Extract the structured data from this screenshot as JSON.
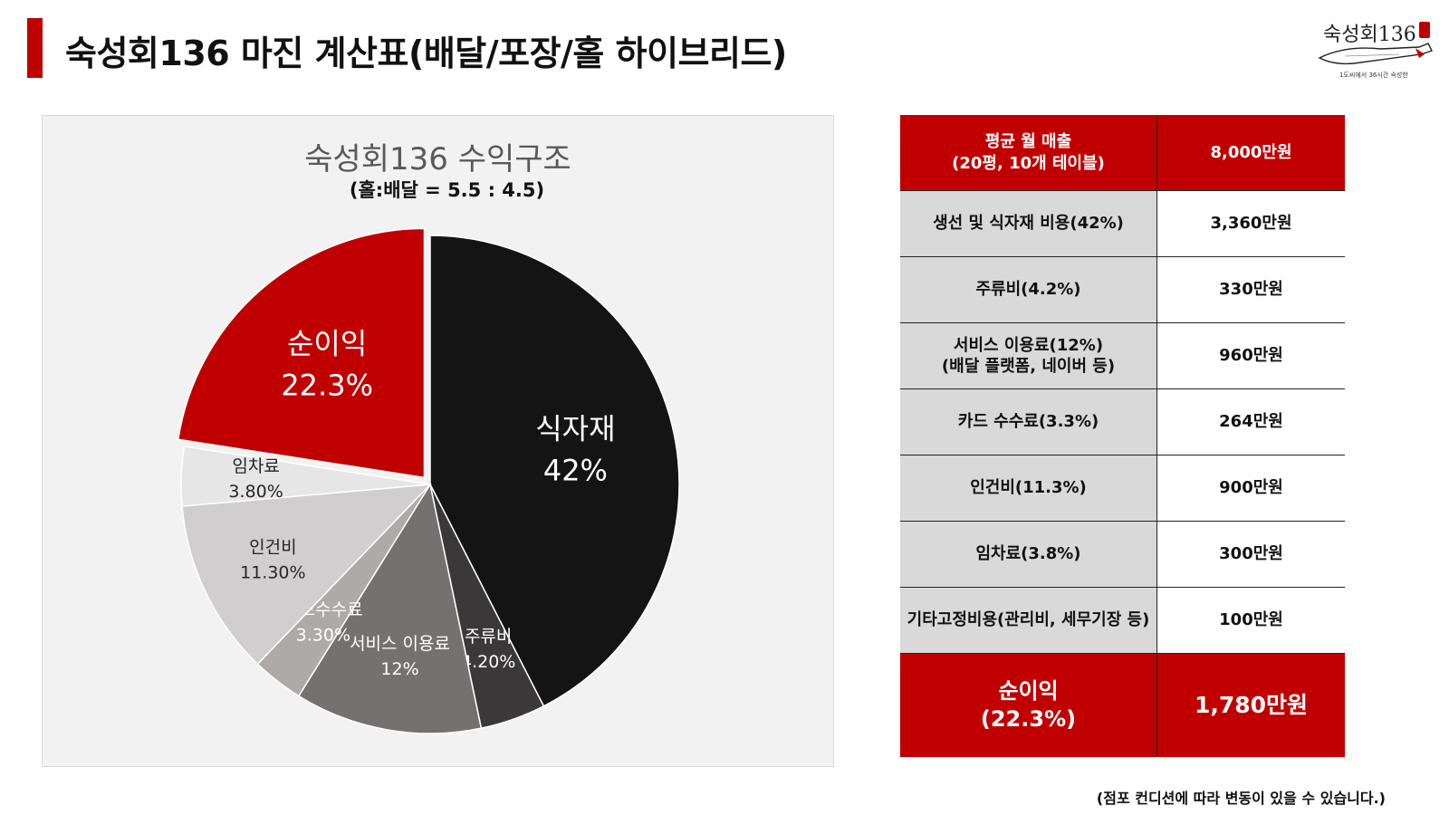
{
  "header": {
    "title": "숙성회136 마진 계산표(배달/포장/홀 하이브리드)",
    "accent_color": "#c00000"
  },
  "logo": {
    "name": "숙성회136",
    "tagline": "1도씨에서 36시간 숙성한"
  },
  "chart_data": {
    "type": "pie",
    "title": "숙성회136 수익구조",
    "subtitle": "(홀:배달 = 5.5 : 4.5)",
    "slices": [
      {
        "name": "식자재",
        "label": "42%",
        "value": 42,
        "color": "#141414",
        "text_color": "#ffffff",
        "large": true
      },
      {
        "name": "주류비",
        "label": "4.20%",
        "value": 4.2,
        "color": "#3a3838",
        "text_color": "#ffffff"
      },
      {
        "name": "서비스 이용료",
        "label": "12%",
        "value": 12,
        "color": "#767171",
        "text_color": "#ffffff"
      },
      {
        "name": "카드수수료",
        "label": "3.30%",
        "value": 3.3,
        "color": "#aeaaaa",
        "text_color": "#ffffff"
      },
      {
        "name": "인건비",
        "label": "11.30%",
        "value": 11.3,
        "color": "#d0cece",
        "text_color": "#262626"
      },
      {
        "name": "임차료",
        "label": "3.80%",
        "value": 3.8,
        "color": "#e7e6e6",
        "text_color": "#262626"
      },
      {
        "name": "순이익",
        "label": "22.3%",
        "value": 22.3,
        "color": "#c00000",
        "text_color": "#ffffff",
        "large": true,
        "exploded": true
      }
    ]
  },
  "table": {
    "header": {
      "label_lines": [
        "평균 월 매출",
        "(20평, 10개 테이블)"
      ],
      "value": "8,000만원"
    },
    "rows": [
      {
        "label_lines": [
          "생선 및 식자재 비용(42%)"
        ],
        "value": "3,360만원"
      },
      {
        "label_lines": [
          "주류비(4.2%)"
        ],
        "value": "330만원"
      },
      {
        "label_lines": [
          "서비스 이용료(12%)",
          "(배달 플랫폼, 네이버 등)"
        ],
        "value": "960만원"
      },
      {
        "label_lines": [
          "카드 수수료(3.3%)"
        ],
        "value": "264만원"
      },
      {
        "label_lines": [
          "인건비(11.3%)"
        ],
        "value": "900만원"
      },
      {
        "label_lines": [
          "임차료(3.8%)"
        ],
        "value": "300만원"
      },
      {
        "label_lines": [
          "기타고정비용(관리비, 세무기장 등)"
        ],
        "value": "100만원"
      }
    ],
    "total": {
      "label_lines": [
        "순이익",
        "(22.3%)"
      ],
      "value": "1,780만원"
    }
  },
  "footnote": "(점포 컨디션에 따라 변동이 있을 수 있습니다.)"
}
